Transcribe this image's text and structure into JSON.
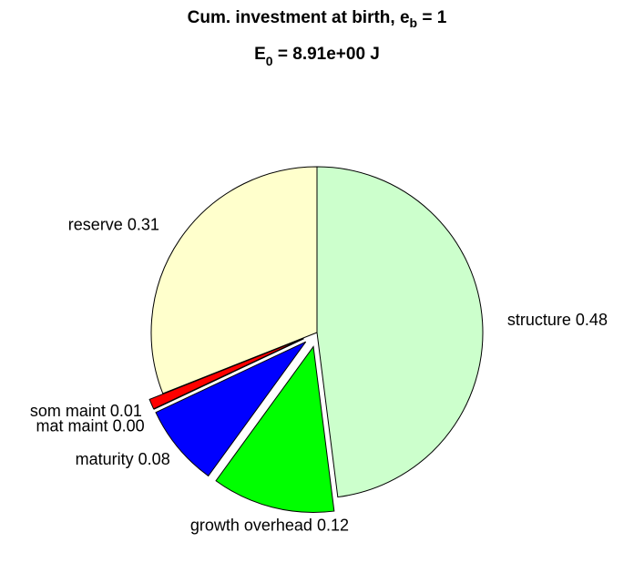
{
  "chart_data": {
    "type": "pie",
    "title": [
      "Cum. investment at birth, e",
      "b",
      " = 1"
    ],
    "subtitle": [
      "E",
      "0",
      " = 8.91e+00 J"
    ],
    "categories": [
      "structure",
      "growth overhead",
      "maturity",
      "mat maint",
      "som maint",
      "reserve"
    ],
    "values": [
      0.48,
      0.12,
      0.08,
      0.0,
      0.01,
      0.31
    ],
    "value_labels": [
      "0.48",
      "0.12",
      "0.08",
      "0.00",
      "0.01",
      "0.31"
    ],
    "explode": [
      false,
      true,
      true,
      true,
      true,
      false
    ],
    "colors": [
      "#ccffcc",
      "#00ff00",
      "#0000ff",
      "#ff00ff",
      "#ff0000",
      "#ffffcc"
    ]
  }
}
